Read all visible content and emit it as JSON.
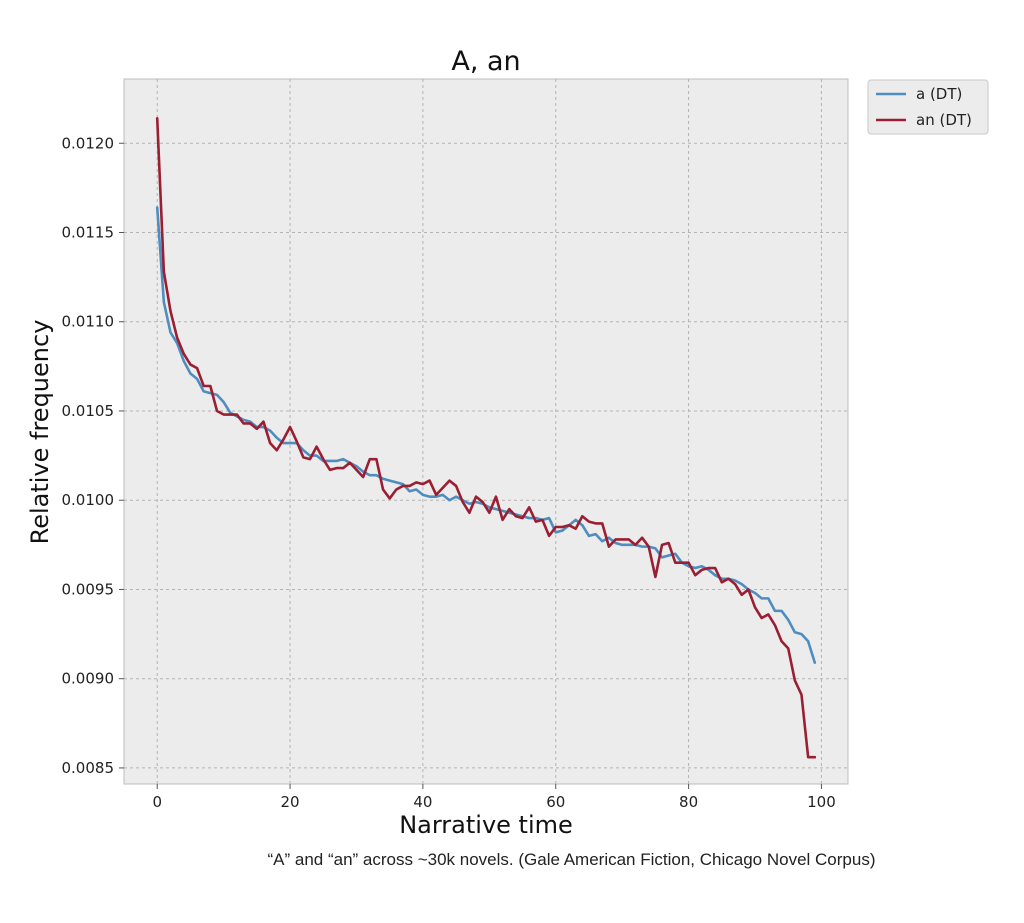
{
  "chart_data": {
    "type": "line",
    "title": "A, an",
    "xlabel": "Narrative time",
    "ylabel": "Relative frequency",
    "xlim": [
      -5,
      104
    ],
    "ylim": [
      0.00841,
      0.01236
    ],
    "xticks": [
      0,
      20,
      40,
      60,
      80,
      100
    ],
    "yticks": [
      0.0085,
      0.009,
      0.0095,
      0.01,
      0.0105,
      0.011,
      0.0115,
      0.012
    ],
    "ytick_labels": [
      "0.0085",
      "0.0090",
      "0.0095",
      "0.0100",
      "0.0105",
      "0.0110",
      "0.0115",
      "0.0120"
    ],
    "grid": true,
    "legend_position": "outside-top-right",
    "x": [
      0,
      1,
      2,
      3,
      4,
      5,
      6,
      7,
      8,
      9,
      10,
      11,
      12,
      13,
      14,
      15,
      16,
      17,
      18,
      19,
      20,
      21,
      22,
      23,
      24,
      25,
      26,
      27,
      28,
      29,
      30,
      31,
      32,
      33,
      34,
      35,
      36,
      37,
      38,
      39,
      40,
      41,
      42,
      43,
      44,
      45,
      46,
      47,
      48,
      49,
      50,
      51,
      52,
      53,
      54,
      55,
      56,
      57,
      58,
      59,
      60,
      61,
      62,
      63,
      64,
      65,
      66,
      67,
      68,
      69,
      70,
      71,
      72,
      73,
      74,
      75,
      76,
      77,
      78,
      79,
      80,
      81,
      82,
      83,
      84,
      85,
      86,
      87,
      88,
      89,
      90,
      91,
      92,
      93,
      94,
      95,
      96,
      97,
      98,
      99
    ],
    "series": [
      {
        "name": "a (DT)",
        "color": "#4f8dbf",
        "values": [
          0.01164,
          0.01111,
          0.01094,
          0.01088,
          0.01078,
          0.01071,
          0.01068,
          0.01061,
          0.0106,
          0.01059,
          0.01055,
          0.01049,
          0.01047,
          0.01045,
          0.01044,
          0.01041,
          0.01041,
          0.01039,
          0.01035,
          0.01032,
          0.01032,
          0.01032,
          0.01028,
          0.01025,
          0.01025,
          0.01022,
          0.01022,
          0.01022,
          0.01023,
          0.01021,
          0.01019,
          0.01016,
          0.01014,
          0.01014,
          0.01012,
          0.01011,
          0.0101,
          0.01009,
          0.01005,
          0.01006,
          0.01003,
          0.01002,
          0.01002,
          0.01003,
          0.01,
          0.01002,
          0.01,
          0.00998,
          0.00999,
          0.00998,
          0.00996,
          0.00995,
          0.00994,
          0.00993,
          0.00992,
          0.00991,
          0.0099,
          0.0099,
          0.00989,
          0.0099,
          0.00982,
          0.00983,
          0.00986,
          0.00989,
          0.00986,
          0.0098,
          0.00981,
          0.00977,
          0.00979,
          0.00976,
          0.00975,
          0.00975,
          0.00975,
          0.00974,
          0.00974,
          0.00973,
          0.00968,
          0.00969,
          0.0097,
          0.00965,
          0.00963,
          0.00962,
          0.00963,
          0.00961,
          0.00958,
          0.00956,
          0.00956,
          0.00955,
          0.00953,
          0.0095,
          0.00948,
          0.00945,
          0.00945,
          0.00938,
          0.00938,
          0.00933,
          0.00926,
          0.00925,
          0.00921,
          0.00909
        ]
      },
      {
        "name": "an (DT)",
        "color": "#9b1f32",
        "values": [
          0.01214,
          0.01128,
          0.01106,
          0.01091,
          0.01082,
          0.01076,
          0.01074,
          0.01064,
          0.01064,
          0.0105,
          0.01048,
          0.01048,
          0.01048,
          0.01043,
          0.01043,
          0.0104,
          0.01044,
          0.01032,
          0.01028,
          0.01034,
          0.01041,
          0.01033,
          0.01024,
          0.01023,
          0.0103,
          0.01023,
          0.01017,
          0.01018,
          0.01018,
          0.01021,
          0.01017,
          0.01013,
          0.01023,
          0.01023,
          0.01006,
          0.01001,
          0.01006,
          0.01008,
          0.01008,
          0.0101,
          0.01009,
          0.01011,
          0.01003,
          0.01007,
          0.01011,
          0.01008,
          0.00999,
          0.00993,
          0.01002,
          0.00999,
          0.00993,
          0.01002,
          0.00989,
          0.00995,
          0.00991,
          0.0099,
          0.00996,
          0.00988,
          0.00989,
          0.0098,
          0.00985,
          0.00985,
          0.00986,
          0.00984,
          0.00991,
          0.00988,
          0.00987,
          0.00987,
          0.00974,
          0.00978,
          0.00978,
          0.00978,
          0.00975,
          0.00979,
          0.00974,
          0.00957,
          0.00975,
          0.00976,
          0.00965,
          0.00965,
          0.00965,
          0.00958,
          0.00961,
          0.00962,
          0.00962,
          0.00954,
          0.00956,
          0.00953,
          0.00947,
          0.0095,
          0.0094,
          0.00934,
          0.00936,
          0.0093,
          0.00921,
          0.00917,
          0.00899,
          0.00891,
          0.00856,
          0.00856
        ]
      }
    ]
  },
  "caption": "“A” and “an” across ~30k novels. (Gale American Fiction, Chicago Novel Corpus)"
}
